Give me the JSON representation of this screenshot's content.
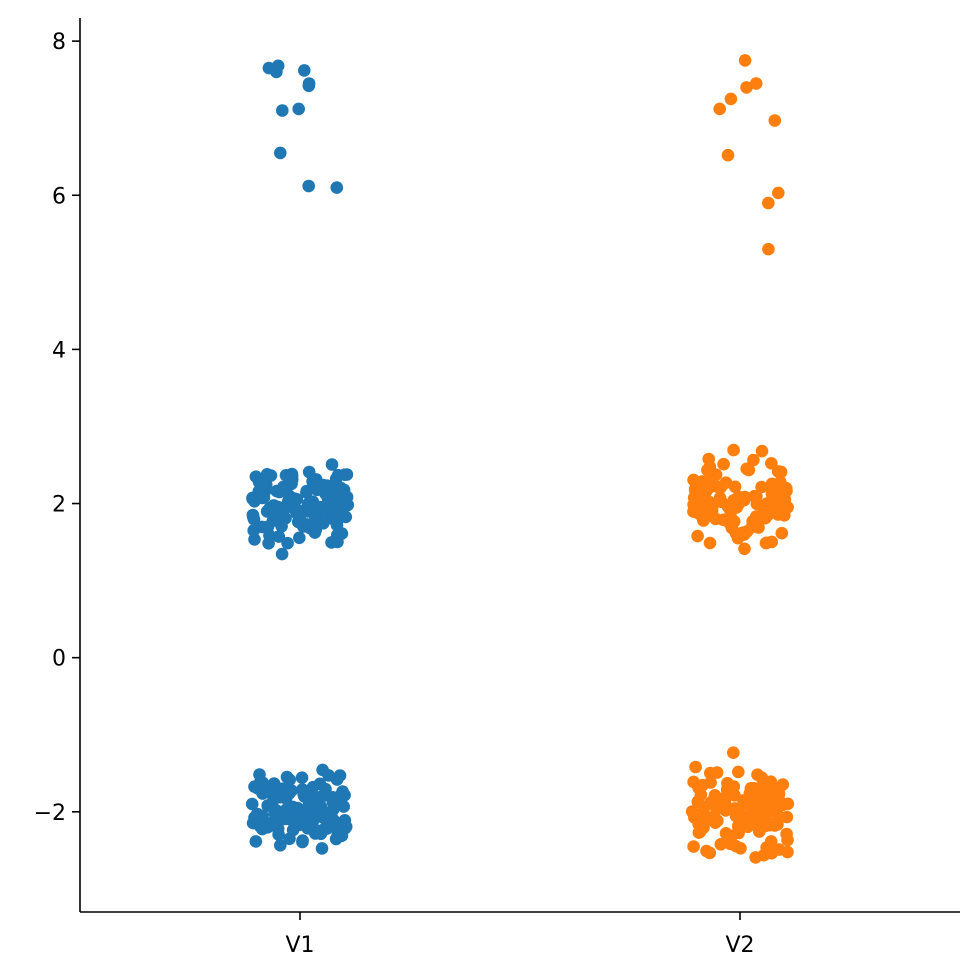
{
  "chart_data": {
    "type": "scatter",
    "subtype": "strip",
    "title": "",
    "xlabel": "",
    "ylabel": "",
    "categories": [
      "V1",
      "V2"
    ],
    "ylim": [
      -3.3,
      8.3
    ],
    "yticks": [
      -2,
      0,
      2,
      4,
      6,
      8
    ],
    "ytick_labels": [
      "−2",
      "0",
      "2",
      "4",
      "6",
      "8"
    ],
    "grid": false,
    "legend": "none",
    "jitter_width": 0.2,
    "series": [
      {
        "category": "V1",
        "color": "#1f77b4",
        "clusters": [
          {
            "center": 2.0,
            "spread": 0.25,
            "count": 120,
            "min": 1.2,
            "max": 2.56
          },
          {
            "center": -2.0,
            "spread": 0.25,
            "count": 120,
            "min": -2.8,
            "max": -1.45
          }
        ],
        "values": [
          7.62,
          7.65,
          7.6,
          7.42,
          7.45,
          7.12,
          7.1,
          7.68,
          6.55,
          6.12,
          6.1
        ]
      },
      {
        "category": "V2",
        "color": "#ff7f0e",
        "clusters": [
          {
            "center": 2.0,
            "spread": 0.25,
            "count": 120,
            "min": 1.4,
            "max": 2.82
          },
          {
            "center": -2.0,
            "spread": 0.25,
            "count": 120,
            "min": -2.6,
            "max": -1.2
          }
        ],
        "values": [
          7.75,
          7.45,
          7.4,
          7.25,
          7.12,
          6.97,
          6.52,
          6.03,
          5.9,
          5.3
        ]
      }
    ]
  }
}
